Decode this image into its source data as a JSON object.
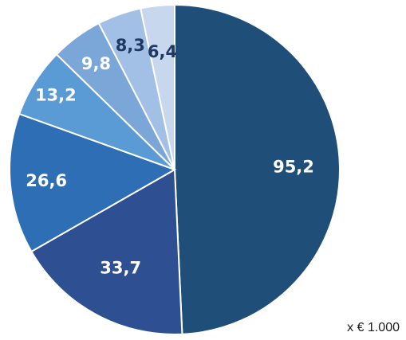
{
  "chart_data": {
    "type": "pie",
    "values": [
      95.2,
      33.7,
      26.6,
      13.2,
      9.8,
      8.3,
      6.4
    ],
    "labels": [
      "95,2",
      "33,7",
      "26,6",
      "13,2",
      "9,8",
      "8,3",
      "6,4"
    ],
    "colors": [
      "#1f4e79",
      "#2e4f91",
      "#2e6eb5",
      "#5b9bd5",
      "#7aa6d8",
      "#a2c0e6",
      "#c6d7ee"
    ],
    "label_colors": [
      "#ffffff",
      "#ffffff",
      "#ffffff",
      "#ffffff",
      "#ffffff",
      "#1f3864",
      "#1f3864"
    ],
    "start": "12 o'clock",
    "direction": "clockwise",
    "legend": "none",
    "unit_note": "x € 1.000"
  }
}
